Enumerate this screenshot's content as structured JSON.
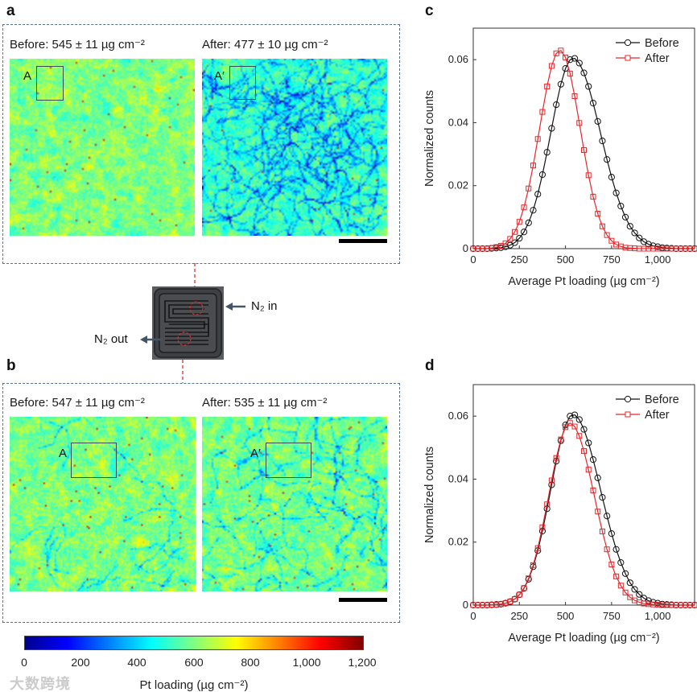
{
  "panels": {
    "a": {
      "label": "a",
      "before_caption": "Before: 545 ± 11 µg cm⁻²",
      "after_caption": "After: 477 ± 10 µg cm⁻²",
      "roi_before": "A",
      "roi_after": "A′"
    },
    "b": {
      "label": "b",
      "before_caption": "Before: 547 ± 11 µg cm⁻²",
      "after_caption": "After: 535 ± 11 µg cm⁻²",
      "roi_before": "A",
      "roi_after": "A′"
    },
    "c": {
      "label": "c"
    },
    "d": {
      "label": "d"
    }
  },
  "cell": {
    "inlet_label": "N₂ in",
    "outlet_label": "N₂ out"
  },
  "colorbar": {
    "ticks": [
      "0",
      "200",
      "400",
      "600",
      "800",
      "1,000",
      "1,200"
    ],
    "title": "Pt loading (µg cm⁻²)",
    "range": [
      0,
      1200
    ]
  },
  "watermark": "大数跨境",
  "colors": {
    "before": "#111111",
    "after": "#e8262b",
    "frame": "#56708f"
  },
  "chart_data": [
    {
      "id": "c",
      "type": "line",
      "xlabel": "Average Pt loading (µg cm⁻²)",
      "ylabel": "Normalized counts",
      "xlim": [
        0,
        1200
      ],
      "ylim": [
        0,
        0.07
      ],
      "xticks": [
        0,
        250,
        500,
        750,
        1000
      ],
      "xtick_labels": [
        "0",
        "250",
        "500",
        "750",
        "1,000"
      ],
      "yticks": [
        0,
        0.02,
        0.04,
        0.06
      ],
      "ytick_labels": [
        "0",
        "0.02",
        "0.04",
        "0.06"
      ],
      "legend": "top-right",
      "x": [
        0,
        25,
        50,
        75,
        100,
        125,
        150,
        175,
        200,
        225,
        250,
        275,
        300,
        325,
        350,
        375,
        400,
        425,
        450,
        475,
        500,
        525,
        550,
        575,
        600,
        625,
        650,
        675,
        700,
        725,
        750,
        775,
        800,
        825,
        850,
        875,
        900,
        925,
        950,
        975,
        1000,
        1025,
        1050,
        1075,
        1100,
        1125,
        1150,
        1175,
        1200
      ],
      "series": [
        {
          "name": "Before",
          "marker": "circle",
          "values": [
            0,
            0,
            0,
            0,
            0.0001,
            0.0002,
            0.0003,
            0.0006,
            0.0011,
            0.0019,
            0.0033,
            0.0053,
            0.0082,
            0.0122,
            0.0173,
            0.0235,
            0.0306,
            0.0382,
            0.0457,
            0.0522,
            0.0572,
            0.06,
            0.0604,
            0.0589,
            0.0558,
            0.0515,
            0.0462,
            0.0404,
            0.0342,
            0.0283,
            0.0227,
            0.0177,
            0.0135,
            0.01,
            0.0071,
            0.005,
            0.0034,
            0.0022,
            0.0014,
            0.0009,
            0.0006,
            0.0003,
            0.0002,
            0.0001,
            0,
            0,
            0,
            0,
            0
          ]
        },
        {
          "name": "After",
          "marker": "square",
          "values": [
            0,
            0,
            0,
            0,
            0.0002,
            0.0005,
            0.0009,
            0.0017,
            0.0031,
            0.0053,
            0.0085,
            0.0131,
            0.0191,
            0.0264,
            0.0348,
            0.0434,
            0.0515,
            0.058,
            0.062,
            0.0629,
            0.0607,
            0.0556,
            0.0484,
            0.0399,
            0.0313,
            0.0233,
            0.0165,
            0.0111,
            0.0071,
            0.0043,
            0.0025,
            0.0013,
            0.0007,
            0.0003,
            0.0002,
            0.0001,
            0,
            0,
            0,
            0,
            0,
            0,
            0,
            0,
            0,
            0,
            0,
            0,
            0
          ]
        }
      ]
    },
    {
      "id": "d",
      "type": "line",
      "xlabel": "Average Pt loading (µg cm⁻²)",
      "ylabel": "Normalized counts",
      "xlim": [
        0,
        1200
      ],
      "ylim": [
        0,
        0.07
      ],
      "xticks": [
        0,
        250,
        500,
        750,
        1000
      ],
      "xtick_labels": [
        "0",
        "250",
        "500",
        "750",
        "1,000"
      ],
      "yticks": [
        0,
        0.02,
        0.04,
        0.06
      ],
      "ytick_labels": [
        "0",
        "0.02",
        "0.04",
        "0.06"
      ],
      "legend": "top-right",
      "x": [
        0,
        25,
        50,
        75,
        100,
        125,
        150,
        175,
        200,
        225,
        250,
        275,
        300,
        325,
        350,
        375,
        400,
        425,
        450,
        475,
        500,
        525,
        550,
        575,
        600,
        625,
        650,
        675,
        700,
        725,
        750,
        775,
        800,
        825,
        850,
        875,
        900,
        925,
        950,
        975,
        1000,
        1025,
        1050,
        1075,
        1100,
        1125,
        1150,
        1175,
        1200
      ],
      "series": [
        {
          "name": "Before",
          "marker": "circle",
          "values": [
            0,
            0,
            0,
            0,
            0.0001,
            0.0002,
            0.0003,
            0.0006,
            0.0011,
            0.0019,
            0.0033,
            0.0053,
            0.0082,
            0.0122,
            0.0173,
            0.0235,
            0.0306,
            0.0382,
            0.0457,
            0.0522,
            0.0572,
            0.06,
            0.0604,
            0.0589,
            0.0558,
            0.0515,
            0.0462,
            0.0404,
            0.0342,
            0.0283,
            0.0227,
            0.0177,
            0.0135,
            0.01,
            0.0071,
            0.005,
            0.0034,
            0.0022,
            0.0014,
            0.0009,
            0.0006,
            0.0003,
            0.0002,
            0.0001,
            0,
            0,
            0,
            0,
            0
          ]
        },
        {
          "name": "After",
          "marker": "square",
          "values": [
            0,
            0,
            0,
            0,
            0.0001,
            0.0001,
            0.0003,
            0.0006,
            0.0011,
            0.0019,
            0.0033,
            0.0054,
            0.0085,
            0.0127,
            0.0181,
            0.0247,
            0.032,
            0.0396,
            0.0467,
            0.0526,
            0.0565,
            0.0578,
            0.0567,
            0.0537,
            0.0489,
            0.043,
            0.0364,
            0.0297,
            0.0234,
            0.0177,
            0.0129,
            0.0091,
            0.0062,
            0.004,
            0.0025,
            0.0015,
            0.0009,
            0.0005,
            0.0003,
            0.0002,
            0.0001,
            0,
            0,
            0,
            0,
            0,
            0,
            0,
            0
          ]
        }
      ]
    }
  ]
}
